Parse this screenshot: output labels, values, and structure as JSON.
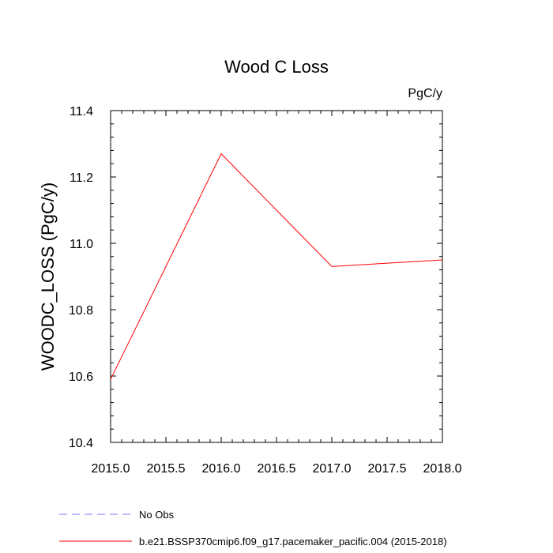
{
  "chart_data": {
    "type": "line",
    "title": "Wood C Loss",
    "units_label": "PgC/y",
    "xlabel": "",
    "ylabel": "WOODC_LOSS  (PgC/y)",
    "xlim": [
      2015.0,
      2018.0
    ],
    "ylim": [
      10.4,
      11.4
    ],
    "x_ticks": [
      "2015.0",
      "2015.5",
      "2016.0",
      "2016.5",
      "2017.0",
      "2017.5",
      "2018.0"
    ],
    "y_ticks": [
      "10.4",
      "10.6",
      "10.8",
      "11.0",
      "11.2",
      "11.4"
    ],
    "grid": false,
    "legend_position": "bottom-left",
    "series": [
      {
        "name": "b.e21.BSSP370cmip6.f09_g17.pacemaker_pacific.004 (2015-2018)",
        "color": "#ff0000",
        "style": "solid",
        "x": [
          2015,
          2016,
          2017,
          2018
        ],
        "y": [
          10.59,
          11.27,
          10.93,
          10.95
        ]
      },
      {
        "name": "No Obs",
        "color": "#7777ff",
        "style": "dashed",
        "x": [],
        "y": []
      }
    ]
  }
}
